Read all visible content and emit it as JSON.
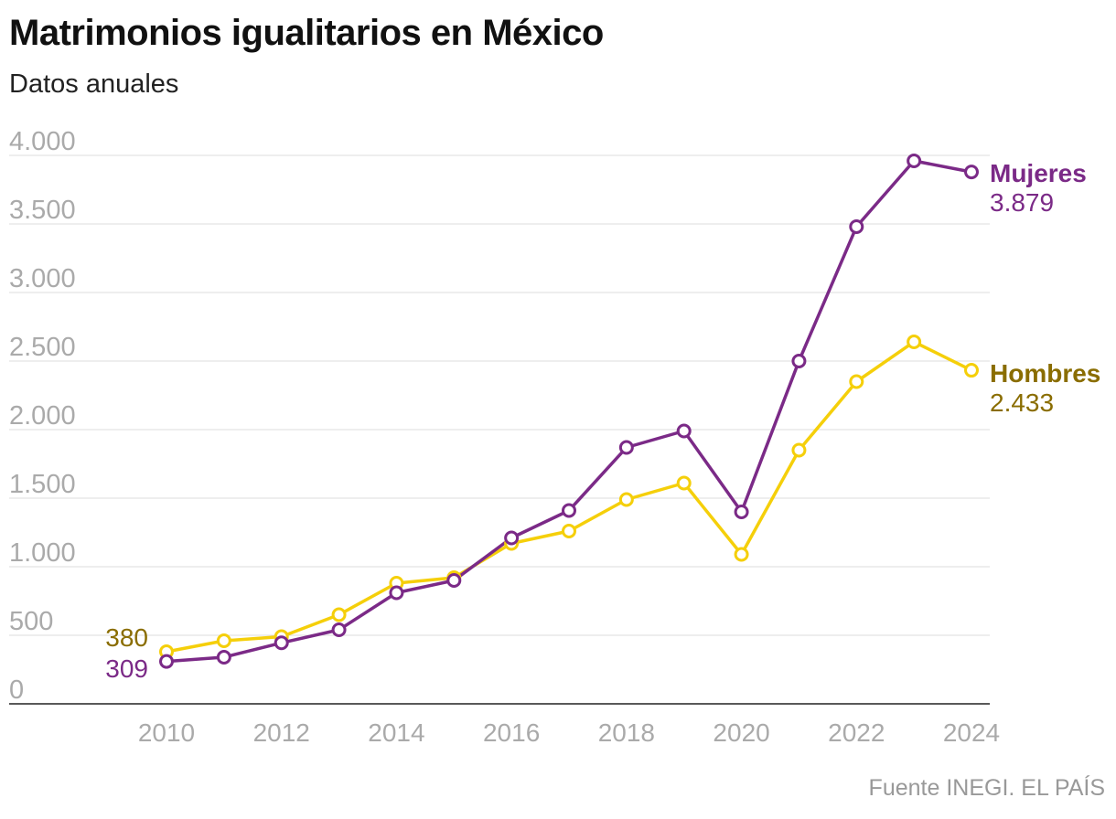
{
  "header": {
    "title": "Matrimonios igualitarios en México",
    "subtitle": "Datos anuales"
  },
  "footer": {
    "source": "Fuente INEGI. EL PAÍS"
  },
  "chart_data": {
    "type": "line",
    "title": "Matrimonios igualitarios en México",
    "subtitle": "Datos anuales",
    "xlabel": "",
    "ylabel": "",
    "ylim": [
      0,
      4000
    ],
    "yticks": [
      0,
      500,
      1000,
      1500,
      2000,
      2500,
      3000,
      3500,
      4000
    ],
    "ytick_labels": [
      "0",
      "500",
      "1.000",
      "1.500",
      "2.000",
      "2.500",
      "3.000",
      "3.500",
      "4.000"
    ],
    "xticks": [
      2010,
      2012,
      2014,
      2016,
      2018,
      2020,
      2022,
      2024
    ],
    "xtick_labels": [
      "2010",
      "2012",
      "2014",
      "2016",
      "2018",
      "2020",
      "2022",
      "2024"
    ],
    "x": [
      2010,
      2011,
      2012,
      2013,
      2014,
      2015,
      2016,
      2017,
      2018,
      2019,
      2020,
      2021,
      2022,
      2023,
      2024
    ],
    "grid": true,
    "series": [
      {
        "name": "Hombres",
        "color": "#f5cf0a",
        "label_color": "#8a6d00",
        "values": [
          380,
          460,
          490,
          650,
          880,
          920,
          1170,
          1260,
          1490,
          1610,
          1090,
          1850,
          2350,
          2640,
          2433
        ],
        "start_label": "380",
        "end_label": "2.433"
      },
      {
        "name": "Mujeres",
        "color": "#7b2a87",
        "label_color": "#7b2a87",
        "values": [
          309,
          340,
          445,
          540,
          810,
          900,
          1210,
          1410,
          1870,
          1990,
          1400,
          2500,
          3480,
          3960,
          3879
        ],
        "start_label": "309",
        "end_label": "3.879"
      }
    ]
  }
}
